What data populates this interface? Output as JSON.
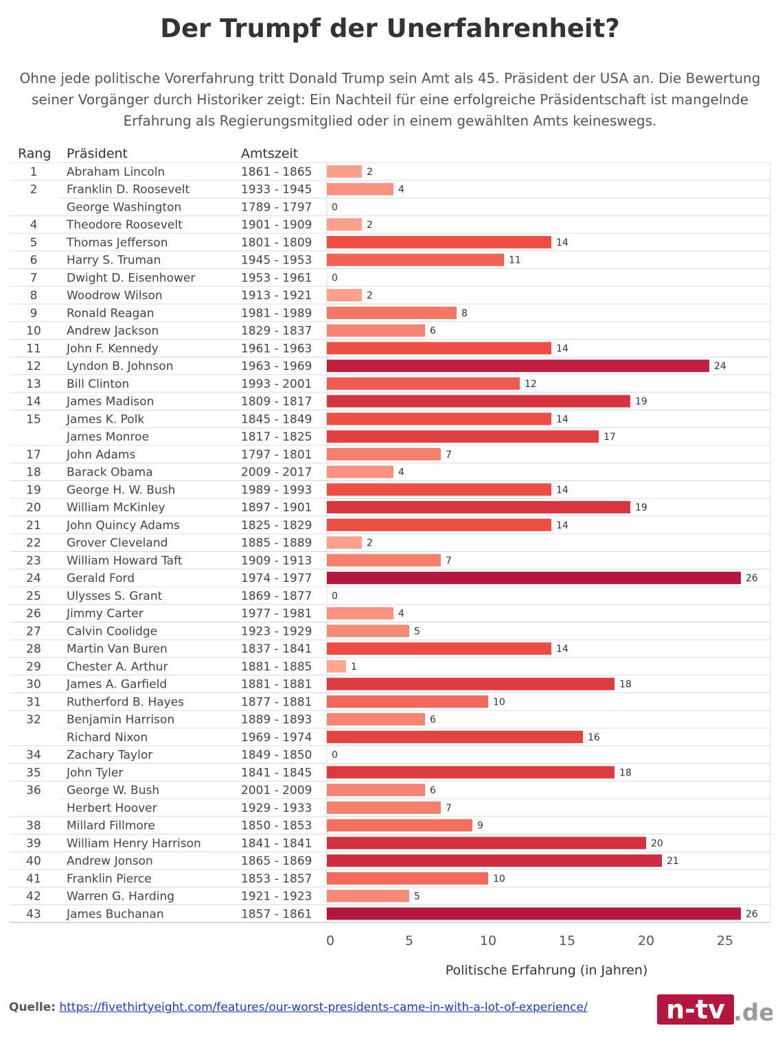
{
  "title": "Der Trumpf der Unerfahrenheit?",
  "subtitle": "Ohne jede politische Vorerfahrung tritt Donald Trump sein Amt als 45. Präsident der USA an. Die Bewertung seiner Vorgänger durch Historiker zeigt: Ein Nachteil für eine erfolgreiche Präsidentschaft ist mangelnde Erfahrung als Regierungsmitglied oder in einem gewählten Amts keineswegs.",
  "source": {
    "label": "Quelle:",
    "url": "https://fivethirtyeight.com/features/our-worst-presidents-came-in-with-a-lot-of-experience/"
  },
  "logo": {
    "name": "n-tv.de logo",
    "text_main": "n-tv",
    "text_suffix": ".de"
  },
  "colors": {
    "low": "#fcae9a",
    "high": "#b5163e",
    "grid": "#d9d9d9",
    "text": "#333333",
    "link": "#1a3bc4"
  },
  "chart_data": {
    "type": "bar",
    "orientation": "horizontal",
    "columns": [
      "Rang",
      "Präsident",
      "Amtszeit"
    ],
    "xlabel": "Politische Erfahrung (in Jahren)",
    "xlim": [
      0,
      28
    ],
    "xticks": [
      0,
      5,
      10,
      15,
      20,
      25
    ],
    "grid": true,
    "rows": [
      {
        "rank": "1",
        "president": "Abraham Lincoln",
        "term": "1861 - 1865",
        "value": 2
      },
      {
        "rank": "2",
        "president": "Franklin D. Roosevelt",
        "term": "1933 - 1945",
        "value": 4
      },
      {
        "rank": "",
        "president": "George Washington",
        "term": "1789 - 1797",
        "value": 0
      },
      {
        "rank": "4",
        "president": "Theodore Roosevelt",
        "term": "1901 - 1909",
        "value": 2
      },
      {
        "rank": "5",
        "president": "Thomas Jefferson",
        "term": "1801 - 1809",
        "value": 14
      },
      {
        "rank": "6",
        "president": "Harry S. Truman",
        "term": "1945 - 1953",
        "value": 11
      },
      {
        "rank": "7",
        "president": "Dwight D. Eisenhower",
        "term": "1953 - 1961",
        "value": 0
      },
      {
        "rank": "8",
        "president": "Woodrow Wilson",
        "term": "1913 - 1921",
        "value": 2
      },
      {
        "rank": "9",
        "president": "Ronald Reagan",
        "term": "1981 - 1989",
        "value": 8
      },
      {
        "rank": "10",
        "president": "Andrew Jackson",
        "term": "1829 - 1837",
        "value": 6
      },
      {
        "rank": "11",
        "president": "John F. Kennedy",
        "term": "1961 - 1963",
        "value": 14
      },
      {
        "rank": "12",
        "president": "Lyndon B. Johnson",
        "term": "1963 - 1969",
        "value": 24
      },
      {
        "rank": "13",
        "president": "Bill Clinton",
        "term": "1993 - 2001",
        "value": 12
      },
      {
        "rank": "14",
        "president": "James Madison",
        "term": "1809 - 1817",
        "value": 19
      },
      {
        "rank": "15",
        "president": "James K. Polk",
        "term": "1845 - 1849",
        "value": 14
      },
      {
        "rank": "",
        "president": "James Monroe",
        "term": "1817 - 1825",
        "value": 17
      },
      {
        "rank": "17",
        "president": "John Adams",
        "term": "1797 - 1801",
        "value": 7
      },
      {
        "rank": "18",
        "president": "Barack Obama",
        "term": "2009 - 2017",
        "value": 4
      },
      {
        "rank": "19",
        "president": "George H. W. Bush",
        "term": "1989 - 1993",
        "value": 14
      },
      {
        "rank": "20",
        "president": "William McKinley",
        "term": "1897 - 1901",
        "value": 19
      },
      {
        "rank": "21",
        "president": "John Quincy Adams",
        "term": "1825 - 1829",
        "value": 14
      },
      {
        "rank": "22",
        "president": "Grover Cleveland",
        "term": "1885 - 1889",
        "value": 2
      },
      {
        "rank": "23",
        "president": "William Howard Taft",
        "term": "1909 - 1913",
        "value": 7
      },
      {
        "rank": "24",
        "president": "Gerald Ford",
        "term": "1974 - 1977",
        "value": 26
      },
      {
        "rank": "25",
        "president": "Ulysses S. Grant",
        "term": "1869 - 1877",
        "value": 0
      },
      {
        "rank": "26",
        "president": "Jimmy Carter",
        "term": "1977 - 1981",
        "value": 4
      },
      {
        "rank": "27",
        "president": "Calvin Coolidge",
        "term": "1923 - 1929",
        "value": 5
      },
      {
        "rank": "28",
        "president": "Martin Van Buren",
        "term": "1837 - 1841",
        "value": 14
      },
      {
        "rank": "29",
        "president": "Chester A. Arthur",
        "term": "1881 - 1885",
        "value": 1
      },
      {
        "rank": "30",
        "president": "James A. Garfield",
        "term": "1881 - 1881",
        "value": 18
      },
      {
        "rank": "31",
        "president": "Rutherford B. Hayes",
        "term": "1877 - 1881",
        "value": 10
      },
      {
        "rank": "32",
        "president": "Benjamin Harrison",
        "term": "1889 - 1893",
        "value": 6
      },
      {
        "rank": "",
        "president": "Richard Nixon",
        "term": "1969 - 1974",
        "value": 16
      },
      {
        "rank": "34",
        "president": "Zachary Taylor",
        "term": "1849 - 1850",
        "value": 0
      },
      {
        "rank": "35",
        "president": "John Tyler",
        "term": "1841 - 1845",
        "value": 18
      },
      {
        "rank": "36",
        "president": "George W. Bush",
        "term": "2001 - 2009",
        "value": 6
      },
      {
        "rank": "",
        "president": "Herbert Hoover",
        "term": "1929 - 1933",
        "value": 7
      },
      {
        "rank": "38",
        "president": "Millard Fillmore",
        "term": "1850 - 1853",
        "value": 9
      },
      {
        "rank": "39",
        "president": "William Henry Harrison",
        "term": "1841 - 1841",
        "value": 20
      },
      {
        "rank": "40",
        "president": "Andrew Jonson",
        "term": "1865 - 1869",
        "value": 21
      },
      {
        "rank": "41",
        "president": "Franklin Pierce",
        "term": "1853 - 1857",
        "value": 10
      },
      {
        "rank": "42",
        "president": "Warren G. Harding",
        "term": "1921 - 1923",
        "value": 5
      },
      {
        "rank": "43",
        "president": "James Buchanan",
        "term": "1857 - 1861",
        "value": 26
      }
    ]
  }
}
